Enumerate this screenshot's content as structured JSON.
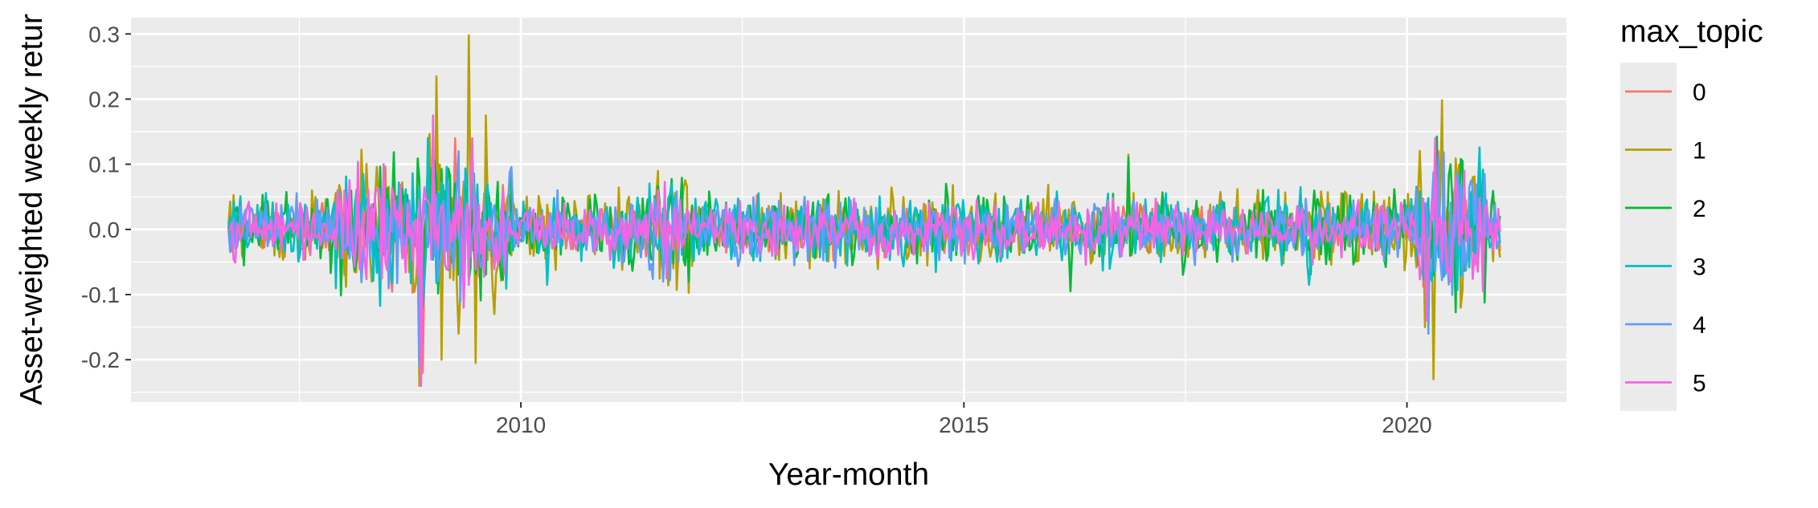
{
  "chart_data": {
    "type": "line",
    "title": "",
    "xlabel": "Year-month",
    "ylabel": "Asset-weighted weekly retur",
    "xlim": [
      2005.6,
      2021.8
    ],
    "ylim": [
      -0.265,
      0.325
    ],
    "x_ticks": [
      2010,
      2015,
      2020
    ],
    "x_tick_labels": [
      "2010",
      "2015",
      "2020"
    ],
    "y_ticks": [
      -0.2,
      -0.1,
      0.0,
      0.1,
      0.2,
      0.3
    ],
    "y_tick_labels": [
      "-0.2",
      "-0.1",
      "0.0",
      "0.1",
      "0.2",
      "0.3"
    ],
    "grid": true,
    "x_range": [
      2006.7,
      2021.05
    ],
    "legend": {
      "title": "max_topic",
      "position": "right",
      "entries": [
        "0",
        "1",
        "2",
        "3",
        "4",
        "5"
      ]
    },
    "series": [
      {
        "name": "0",
        "color": "#F8766D",
        "base_amp": 0.018,
        "events": [
          {
            "x": 2008.9,
            "y": -0.22
          },
          {
            "x": 2009.25,
            "y": 0.14
          },
          {
            "x": 2008.0,
            "y": -0.07
          },
          {
            "x": 2020.25,
            "y": -0.14
          },
          {
            "x": 2020.35,
            "y": 0.12
          }
        ]
      },
      {
        "name": "1",
        "color": "#B79F00",
        "base_amp": 0.028,
        "events": [
          {
            "x": 2008.7,
            "y": 0.06
          },
          {
            "x": 2008.85,
            "y": -0.24
          },
          {
            "x": 2008.95,
            "y": 0.13
          },
          {
            "x": 2009.05,
            "y": 0.235
          },
          {
            "x": 2009.1,
            "y": -0.2
          },
          {
            "x": 2009.3,
            "y": -0.16
          },
          {
            "x": 2009.42,
            "y": 0.298
          },
          {
            "x": 2009.48,
            "y": -0.205
          },
          {
            "x": 2009.6,
            "y": 0.175
          },
          {
            "x": 2009.7,
            "y": -0.13
          },
          {
            "x": 2008.45,
            "y": 0.09
          },
          {
            "x": 2016.85,
            "y": 0.115
          },
          {
            "x": 2020.2,
            "y": -0.15
          },
          {
            "x": 2020.3,
            "y": -0.23
          },
          {
            "x": 2020.4,
            "y": 0.198
          },
          {
            "x": 2020.6,
            "y": -0.12
          },
          {
            "x": 2020.75,
            "y": 0.08
          }
        ]
      },
      {
        "name": "2",
        "color": "#00BA38",
        "base_amp": 0.026,
        "events": [
          {
            "x": 2009.9,
            "y": 0.09
          },
          {
            "x": 2014.8,
            "y": 0.07
          },
          {
            "x": 2016.2,
            "y": -0.095
          },
          {
            "x": 2016.85,
            "y": 0.11
          },
          {
            "x": 2020.5,
            "y": 0.1
          },
          {
            "x": 2008.9,
            "y": -0.12
          }
        ]
      },
      {
        "name": "3",
        "color": "#00BFC4",
        "base_amp": 0.024,
        "events": [
          {
            "x": 2010.3,
            "y": -0.085
          },
          {
            "x": 2011.7,
            "y": 0.07
          },
          {
            "x": 2018.8,
            "y": 0.065
          },
          {
            "x": 2018.9,
            "y": -0.085
          },
          {
            "x": 2020.85,
            "y": 0.09
          },
          {
            "x": 2008.95,
            "y": 0.14
          }
        ]
      },
      {
        "name": "4",
        "color": "#619CFF",
        "base_amp": 0.022,
        "events": [
          {
            "x": 2008.85,
            "y": -0.21
          },
          {
            "x": 2009.3,
            "y": 0.12
          },
          {
            "x": 2011.6,
            "y": -0.08
          },
          {
            "x": 2020.25,
            "y": -0.16
          },
          {
            "x": 2020.35,
            "y": 0.11
          }
        ]
      },
      {
        "name": "5",
        "color": "#F564E3",
        "base_amp": 0.02,
        "events": [
          {
            "x": 2008.88,
            "y": -0.24
          },
          {
            "x": 2009.0,
            "y": 0.175
          },
          {
            "x": 2009.35,
            "y": -0.12
          },
          {
            "x": 2009.45,
            "y": 0.14
          },
          {
            "x": 2011.55,
            "y": 0.06
          },
          {
            "x": 2011.65,
            "y": -0.075
          },
          {
            "x": 2020.22,
            "y": -0.14
          },
          {
            "x": 2020.32,
            "y": 0.14
          },
          {
            "x": 2020.5,
            "y": -0.08
          },
          {
            "x": 2020.8,
            "y": -0.065
          }
        ]
      }
    ]
  }
}
